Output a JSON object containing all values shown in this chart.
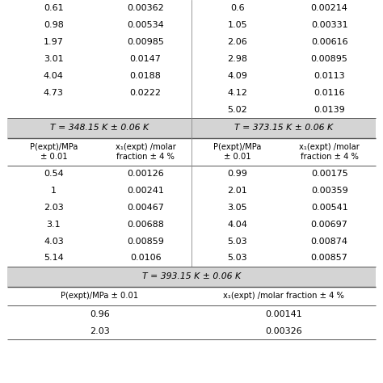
{
  "header_bg": "#d4d4d4",
  "white_bg": "#ffffff",
  "sections": [
    {
      "type": "data_rows_top",
      "left_col": [
        [
          "0.61",
          "0.00362"
        ],
        [
          "0.98",
          "0.00534"
        ],
        [
          "1.97",
          "0.00985"
        ],
        [
          "3.01",
          "0.0147"
        ],
        [
          "4.04",
          "0.0188"
        ],
        [
          "4.73",
          "0.0222"
        ]
      ],
      "right_col": [
        [
          "0.6",
          "0.00214"
        ],
        [
          "1.05",
          "0.00331"
        ],
        [
          "2.06",
          "0.00616"
        ],
        [
          "2.98",
          "0.00895"
        ],
        [
          "4.09",
          "0.0113"
        ],
        [
          "4.12",
          "0.0116"
        ],
        [
          "5.02",
          "0.0139"
        ]
      ]
    },
    {
      "type": "header_row",
      "left": "T = 348.15 K ± 0.06 K",
      "right": "T = 373.15 K ± 0.06 K"
    },
    {
      "type": "col_header",
      "cols": [
        "P(expt)/MPa\n± 0.01",
        "x₁(expt) /molar\nfraction ± 4 %",
        "P(expt)/MPa\n± 0.01",
        "x₁(expt) /molar\nfraction ± 4 %"
      ]
    },
    {
      "type": "data_rows_mid",
      "left_col": [
        [
          "0.54",
          "0.00126"
        ],
        [
          "1",
          "0.00241"
        ],
        [
          "2.03",
          "0.00467"
        ],
        [
          "3.1",
          "0.00688"
        ],
        [
          "4.03",
          "0.00859"
        ],
        [
          "5.14",
          "0.0106"
        ]
      ],
      "right_col": [
        [
          "0.99",
          "0.00175"
        ],
        [
          "2.01",
          "0.00359"
        ],
        [
          "3.05",
          "0.00541"
        ],
        [
          "4.04",
          "0.00697"
        ],
        [
          "5.03",
          "0.00874"
        ],
        [
          "5.03",
          "0.00857"
        ]
      ]
    },
    {
      "type": "header_row_full",
      "text": "T = 393.15 K ± 0.06 K"
    },
    {
      "type": "col_header_bottom",
      "cols": [
        "P(expt)/MPa ± 0.01",
        "x₁(expt) /molar fraction ± 4 %"
      ]
    },
    {
      "type": "data_rows_bottom",
      "rows": [
        [
          "0.96",
          "0.00141"
        ],
        [
          "2.03",
          "0.00326"
        ]
      ]
    }
  ],
  "font_size": 8.0,
  "header_font_size": 7.8,
  "col_header_font_size": 7.2
}
